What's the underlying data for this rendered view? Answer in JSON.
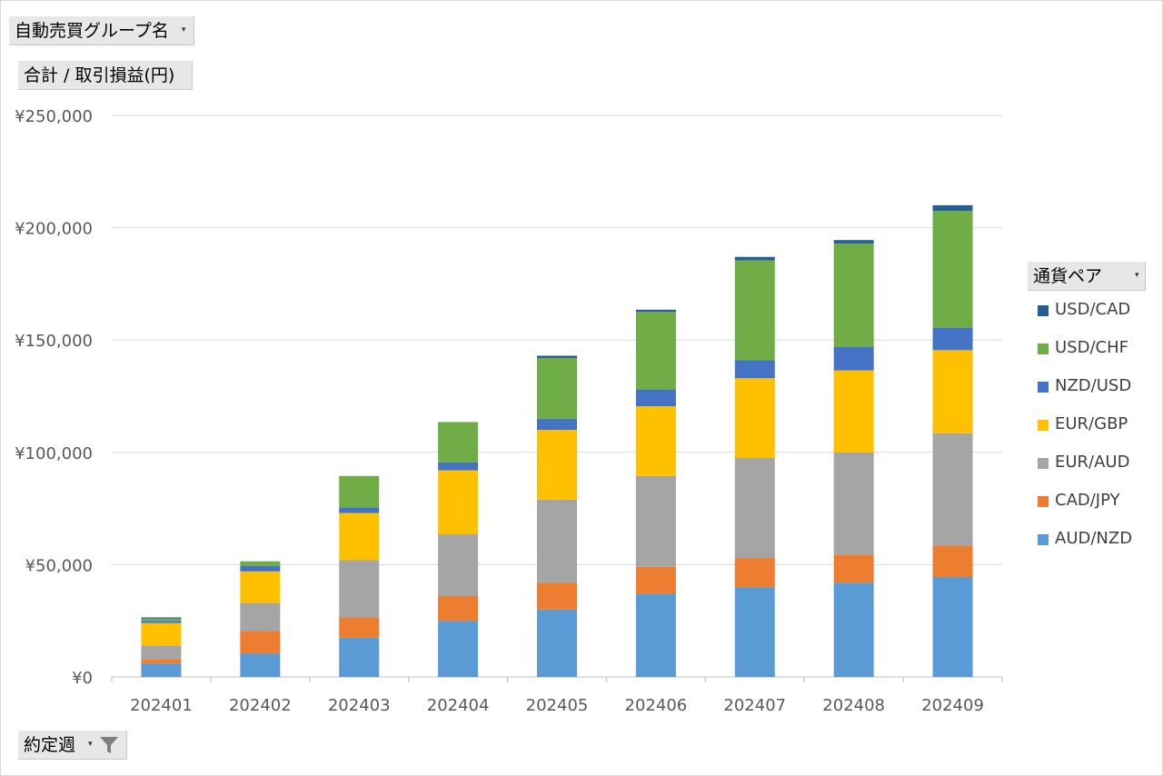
{
  "buttons": {
    "group_name": "自動売買グループ名",
    "value_field": "合計 / 取引損益(円)",
    "legend_field": "通貨ペア",
    "week_field": "約定週"
  },
  "icons": {
    "dropdown": "chevron-down-icon",
    "filter": "filter-icon"
  },
  "chart_data": {
    "type": "bar",
    "stacked": true,
    "title": "",
    "xlabel": "",
    "ylabel": "",
    "categories": [
      "202401",
      "202402",
      "202403",
      "202404",
      "202405",
      "202406",
      "202407",
      "202408",
      "202409"
    ],
    "y_ticks": [
      "¥0",
      "¥50,000",
      "¥100,000",
      "¥150,000",
      "¥200,000",
      "¥250,000"
    ],
    "ylim": [
      0,
      250000
    ],
    "grid": true,
    "legend_position": "right",
    "series": [
      {
        "name": "AUD/NZD",
        "color": "#5b9bd5",
        "values": [
          6000,
          10500,
          17500,
          25000,
          30000,
          37000,
          40000,
          42000,
          44500
        ]
      },
      {
        "name": "CAD/JPY",
        "color": "#ed7d31",
        "values": [
          2000,
          10000,
          9000,
          11000,
          12000,
          12000,
          13000,
          12500,
          14000
        ]
      },
      {
        "name": "EUR/AUD",
        "color": "#a5a5a5",
        "values": [
          6000,
          12500,
          25500,
          27500,
          37000,
          40500,
          44500,
          45500,
          50000
        ]
      },
      {
        "name": "EUR/GBP",
        "color": "#ffc000",
        "values": [
          10000,
          14000,
          21000,
          28500,
          31000,
          31000,
          35500,
          36500,
          37000
        ]
      },
      {
        "name": "NZD/USD",
        "color": "#4472c4",
        "values": [
          1000,
          2500,
          2500,
          3500,
          5000,
          7500,
          8000,
          10500,
          10000
        ]
      },
      {
        "name": "USD/CHF",
        "color": "#70ad47",
        "values": [
          1000,
          2000,
          14000,
          18000,
          27000,
          34500,
          44500,
          46000,
          52000
        ]
      },
      {
        "name": "USD/CAD",
        "color": "#255e91",
        "values": [
          500,
          0,
          0,
          0,
          1000,
          1000,
          1500,
          1500,
          2500
        ]
      }
    ]
  }
}
